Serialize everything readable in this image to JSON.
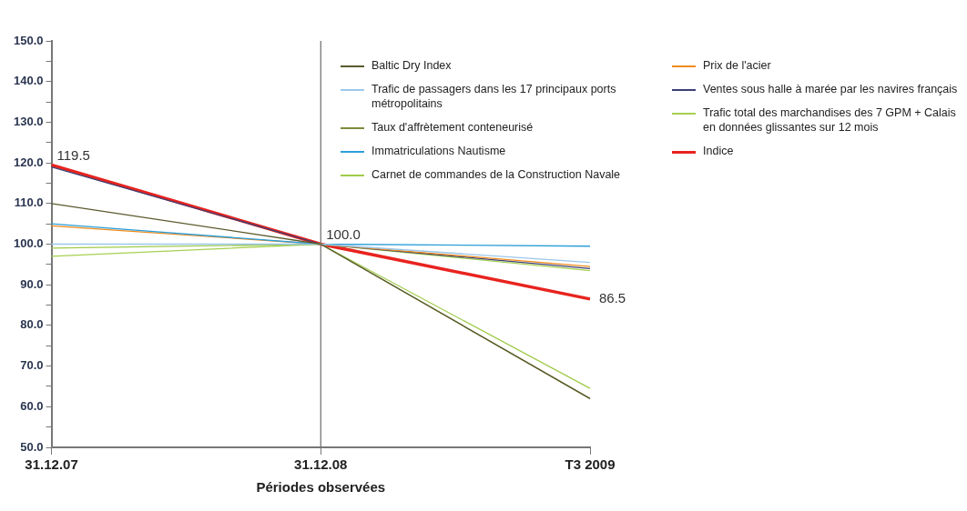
{
  "chart_data": {
    "type": "line",
    "xlabel": "Périodes observées",
    "categories": [
      "31.12.07",
      "31.12.08",
      "T3 2009"
    ],
    "ylim": [
      50,
      150
    ],
    "yticks": [
      {
        "value": 50,
        "label": "50.0"
      },
      {
        "value": 55,
        "label": null
      },
      {
        "value": 60,
        "label": "60.0"
      },
      {
        "value": 65,
        "label": null
      },
      {
        "value": 70,
        "label": "70.0"
      },
      {
        "value": 75,
        "label": null
      },
      {
        "value": 80,
        "label": "80.0"
      },
      {
        "value": 85,
        "label": null
      },
      {
        "value": 90,
        "label": "90.0"
      },
      {
        "value": 95,
        "label": null
      },
      {
        "value": 100,
        "label": "100.0"
      },
      {
        "value": 105,
        "label": null
      },
      {
        "value": 110,
        "label": "110.0"
      },
      {
        "value": 115,
        "label": null
      },
      {
        "value": 120,
        "label": "120.0"
      },
      {
        "value": 125,
        "label": null
      },
      {
        "value": 130,
        "label": "130.0"
      },
      {
        "value": 135,
        "label": null
      },
      {
        "value": 140,
        "label": "140.0"
      },
      {
        "value": 145,
        "label": null
      },
      {
        "value": 150,
        "label": "150.0"
      }
    ],
    "grid": false,
    "legend": "top right",
    "marker": "none",
    "ref_lines": [
      {
        "axis": "x",
        "value": "31.12.08",
        "color": "#6b6b6b"
      }
    ],
    "series": [
      {
        "name": "Baltic Dry Index",
        "color": "#5b5a2e",
        "values": [
          110,
          100,
          62
        ]
      },
      {
        "name": "Trafic de passagers dans les 17 principaux ports métropolitains",
        "color": "#9cc7ea",
        "values": [
          100,
          100,
          95.5
        ]
      },
      {
        "name": "Taux d'affrètement conteneurisé",
        "color": "#7d8c3c",
        "values": [
          null,
          100,
          62
        ]
      },
      {
        "name": "Immatriculations Nautisme",
        "color": "#2b9fd9",
        "values": [
          105,
          100,
          99.5
        ]
      },
      {
        "name": "Carnet de commandes de la Construction Navale",
        "color": "#9fcb4a",
        "values": [
          99,
          100,
          64.5
        ]
      },
      {
        "name": "Prix de l'acier",
        "color": "#f08a1c",
        "values": [
          104.5,
          100,
          94.5
        ]
      },
      {
        "name": "Ventes sous halle à marée par les navires français",
        "color": "#3b3f73",
        "values": [
          119,
          100,
          94
        ]
      },
      {
        "name": "Trafic total des marchandises des 7 GPM + Calais en données glissantes sur 12 mois",
        "color": "#a5d050",
        "values": [
          97,
          100,
          93.5
        ]
      },
      {
        "name": "Indice",
        "color": "#e8231f",
        "values": [
          119.5,
          100,
          86.5
        ],
        "value_labels": [
          "119.5",
          "100.0",
          "86.5"
        ]
      }
    ]
  }
}
